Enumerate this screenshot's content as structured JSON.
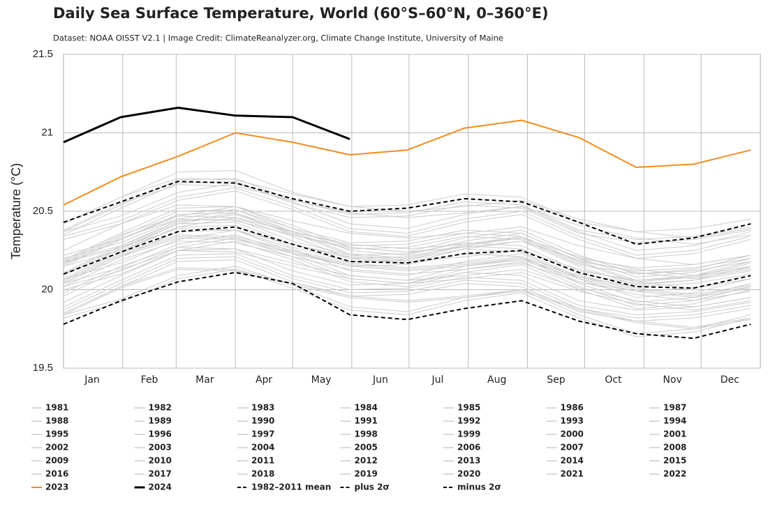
{
  "chart_data": {
    "type": "line",
    "title": "Daily Sea Surface Temperature, World (60°S–60°N, 0–360°E)",
    "subtitle": "Dataset: NOAA OISST V2.1 | Image Credit: ClimateReanalyzer.org, Climate Change Institute, University of Maine",
    "y_label": "Temperature (°C)",
    "x": [
      1,
      31,
      61,
      91,
      121,
      151,
      181,
      211,
      241,
      271,
      301,
      331,
      361
    ],
    "xlim": [
      1,
      366
    ],
    "xticks": [
      {
        "value": 16,
        "label": "Jan"
      },
      {
        "value": 46,
        "label": "Feb"
      },
      {
        "value": 75,
        "label": "Mar"
      },
      {
        "value": 106,
        "label": "Apr"
      },
      {
        "value": 136,
        "label": "May"
      },
      {
        "value": 167,
        "label": "Jun"
      },
      {
        "value": 197,
        "label": "Jul"
      },
      {
        "value": 228,
        "label": "Aug"
      },
      {
        "value": 259,
        "label": "Sep"
      },
      {
        "value": 289,
        "label": "Oct"
      },
      {
        "value": 320,
        "label": "Nov"
      },
      {
        "value": 350,
        "label": "Dec"
      }
    ],
    "xgrid": [
      32,
      60,
      91,
      121,
      152,
      182,
      213,
      244,
      274,
      305,
      335
    ],
    "ylim": [
      19.5,
      21.5
    ],
    "yticks": [
      19.5,
      20,
      20.5,
      21,
      21.5
    ],
    "grid": true,
    "series": [
      {
        "name": "1981",
        "color": "#cccccc",
        "values": [
          19.85,
          20.02,
          20.14,
          20.13,
          20.04,
          19.96,
          19.93,
          19.96,
          20.0,
          19.88,
          19.8,
          19.76,
          19.82
        ]
      },
      {
        "name": "1982",
        "color": "#cccccc",
        "values": [
          19.84,
          19.94,
          20.09,
          20.15,
          20.03,
          19.89,
          19.86,
          19.95,
          20.0,
          19.84,
          19.72,
          19.75,
          19.84
        ]
      },
      {
        "name": "1983",
        "color": "#cccccc",
        "values": [
          19.92,
          20.09,
          20.25,
          20.26,
          20.12,
          20.03,
          20.04,
          20.11,
          20.09,
          19.93,
          19.87,
          19.89,
          19.95
        ]
      },
      {
        "name": "1984",
        "color": "#cccccc",
        "values": [
          19.84,
          20.01,
          20.13,
          20.12,
          20.03,
          19.95,
          19.92,
          19.95,
          19.99,
          19.87,
          19.79,
          19.75,
          19.81
        ]
      },
      {
        "name": "1985",
        "color": "#cccccc",
        "values": [
          19.82,
          19.92,
          20.07,
          20.13,
          20.01,
          19.87,
          19.84,
          19.93,
          19.98,
          19.82,
          19.7,
          19.73,
          19.82
        ]
      },
      {
        "name": "1986",
        "color": "#cccccc",
        "values": [
          19.85,
          20.02,
          20.18,
          20.19,
          20.05,
          19.96,
          19.97,
          20.04,
          20.02,
          19.86,
          19.8,
          19.82,
          19.88
        ]
      },
      {
        "name": "1987",
        "color": "#cccccc",
        "values": [
          20.02,
          20.19,
          20.31,
          20.3,
          20.21,
          20.13,
          20.1,
          20.13,
          20.17,
          20.05,
          19.97,
          19.93,
          19.99
        ]
      },
      {
        "name": "1988",
        "color": "#cccccc",
        "values": [
          20.0,
          20.1,
          20.25,
          20.31,
          20.19,
          20.05,
          20.02,
          20.11,
          20.16,
          20.0,
          19.88,
          19.91,
          20.0
        ]
      },
      {
        "name": "1989",
        "color": "#cccccc",
        "values": [
          19.89,
          20.06,
          20.22,
          20.23,
          20.09,
          20.0,
          20.01,
          20.08,
          20.06,
          19.9,
          19.84,
          19.86,
          19.92
        ]
      },
      {
        "name": "1990",
        "color": "#cccccc",
        "values": [
          20.05,
          20.22,
          20.34,
          20.33,
          20.24,
          20.16,
          20.13,
          20.16,
          20.2,
          20.08,
          20.0,
          19.96,
          20.02
        ]
      },
      {
        "name": "1991",
        "color": "#cccccc",
        "values": [
          20.04,
          20.14,
          20.29,
          20.35,
          20.23,
          20.09,
          20.06,
          20.15,
          20.2,
          20.04,
          19.92,
          19.95,
          20.04
        ]
      },
      {
        "name": "1992",
        "color": "#cccccc",
        "values": [
          19.87,
          20.04,
          20.2,
          20.21,
          20.07,
          19.98,
          19.99,
          20.06,
          20.04,
          19.88,
          19.82,
          19.84,
          19.9
        ]
      },
      {
        "name": "1993",
        "color": "#cccccc",
        "values": [
          19.98,
          20.15,
          20.27,
          20.26,
          20.17,
          20.09,
          20.06,
          20.09,
          20.13,
          20.01,
          19.93,
          19.89,
          19.95
        ]
      },
      {
        "name": "1994",
        "color": "#cccccc",
        "values": [
          20.02,
          20.12,
          20.27,
          20.33,
          20.21,
          20.07,
          20.04,
          20.13,
          20.18,
          20.02,
          19.9,
          19.93,
          20.02
        ]
      },
      {
        "name": "1995",
        "color": "#cccccc",
        "values": [
          20.04,
          20.21,
          20.37,
          20.38,
          20.24,
          20.15,
          20.16,
          20.23,
          20.21,
          20.05,
          19.99,
          20.01,
          20.07
        ]
      },
      {
        "name": "1996",
        "color": "#cccccc",
        "values": [
          19.96,
          20.13,
          20.25,
          20.24,
          20.15,
          20.07,
          20.04,
          20.07,
          20.11,
          19.99,
          19.91,
          19.87,
          19.93
        ]
      },
      {
        "name": "1997",
        "color": "#cccccc",
        "values": [
          20.17,
          20.27,
          20.42,
          20.48,
          20.36,
          20.22,
          20.19,
          20.28,
          20.33,
          20.17,
          20.05,
          20.08,
          20.17
        ]
      },
      {
        "name": "1998",
        "color": "#cccccc",
        "values": [
          20.15,
          20.32,
          20.48,
          20.49,
          20.35,
          20.26,
          20.27,
          20.34,
          20.32,
          20.16,
          20.1,
          20.12,
          20.18
        ]
      },
      {
        "name": "1999",
        "color": "#cccccc",
        "values": [
          20.04,
          20.21,
          20.33,
          20.32,
          20.23,
          20.15,
          20.12,
          20.15,
          20.19,
          20.07,
          19.99,
          19.95,
          20.01
        ]
      },
      {
        "name": "2000",
        "color": "#cccccc",
        "values": [
          20.07,
          20.17,
          20.32,
          20.38,
          20.26,
          20.12,
          20.09,
          20.18,
          20.23,
          20.07,
          19.95,
          19.98,
          20.07
        ]
      },
      {
        "name": "2001",
        "color": "#cccccc",
        "values": [
          20.09,
          20.26,
          20.42,
          20.43,
          20.29,
          20.2,
          20.21,
          20.28,
          20.26,
          20.1,
          20.04,
          20.06,
          20.12
        ]
      },
      {
        "name": "2002",
        "color": "#cccccc",
        "values": [
          20.16,
          20.33,
          20.45,
          20.44,
          20.35,
          20.27,
          20.24,
          20.27,
          20.31,
          20.19,
          20.11,
          20.07,
          20.13
        ]
      },
      {
        "name": "2003",
        "color": "#cccccc",
        "values": [
          20.2,
          20.3,
          20.45,
          20.51,
          20.39,
          20.25,
          20.22,
          20.31,
          20.36,
          20.2,
          20.08,
          20.11,
          20.2
        ]
      },
      {
        "name": "2004",
        "color": "#cccccc",
        "values": [
          20.11,
          20.28,
          20.44,
          20.45,
          20.31,
          20.22,
          20.23,
          20.3,
          20.28,
          20.12,
          20.06,
          20.08,
          20.14
        ]
      },
      {
        "name": "2005",
        "color": "#cccccc",
        "values": [
          20.18,
          20.35,
          20.47,
          20.46,
          20.37,
          20.29,
          20.26,
          20.29,
          20.33,
          20.21,
          20.13,
          20.09,
          20.15
        ]
      },
      {
        "name": "2006",
        "color": "#cccccc",
        "values": [
          20.15,
          20.25,
          20.4,
          20.46,
          20.34,
          20.2,
          20.17,
          20.26,
          20.31,
          20.15,
          20.03,
          20.06,
          20.15
        ]
      },
      {
        "name": "2007",
        "color": "#cccccc",
        "values": [
          20.07,
          20.24,
          20.4,
          20.41,
          20.27,
          20.18,
          20.19,
          20.26,
          20.24,
          20.08,
          20.02,
          20.04,
          20.1
        ]
      },
      {
        "name": "2008",
        "color": "#cccccc",
        "values": [
          20.06,
          20.23,
          20.35,
          20.34,
          20.25,
          20.17,
          20.14,
          20.17,
          20.21,
          20.09,
          20.01,
          19.97,
          20.03
        ]
      },
      {
        "name": "2009",
        "color": "#cccccc",
        "values": [
          20.22,
          20.32,
          20.47,
          20.53,
          20.41,
          20.27,
          20.24,
          20.33,
          20.38,
          20.22,
          20.1,
          20.13,
          20.22
        ]
      },
      {
        "name": "2010",
        "color": "#cccccc",
        "values": [
          20.19,
          20.36,
          20.52,
          20.53,
          20.39,
          20.3,
          20.31,
          20.38,
          20.36,
          20.2,
          20.14,
          20.16,
          20.22
        ]
      },
      {
        "name": "2011",
        "color": "#cccccc",
        "values": [
          20.1,
          20.27,
          20.39,
          20.38,
          20.29,
          20.21,
          20.18,
          20.21,
          20.25,
          20.13,
          20.05,
          20.01,
          20.07
        ]
      },
      {
        "name": "2012",
        "color": "#cccccc",
        "values": [
          20.18,
          20.28,
          20.43,
          20.49,
          20.37,
          20.23,
          20.2,
          20.29,
          20.34,
          20.18,
          20.06,
          20.09,
          20.18
        ]
      },
      {
        "name": "2013",
        "color": "#cccccc",
        "values": [
          20.17,
          20.34,
          20.5,
          20.51,
          20.37,
          20.28,
          20.29,
          20.36,
          20.34,
          20.18,
          20.12,
          20.14,
          20.2
        ]
      },
      {
        "name": "2014",
        "color": "#cccccc",
        "values": [
          20.25,
          20.42,
          20.54,
          20.53,
          20.44,
          20.36,
          20.33,
          20.36,
          20.4,
          20.28,
          20.2,
          20.16,
          20.22
        ]
      },
      {
        "name": "2015",
        "color": "#cccccc",
        "values": [
          20.34,
          20.44,
          20.59,
          20.65,
          20.53,
          20.39,
          20.36,
          20.45,
          20.5,
          20.34,
          20.22,
          20.25,
          20.34
        ]
      },
      {
        "name": "2016",
        "color": "#cccccc",
        "values": [
          20.42,
          20.59,
          20.75,
          20.76,
          20.62,
          20.53,
          20.54,
          20.61,
          20.59,
          20.43,
          20.37,
          20.39,
          20.45
        ]
      },
      {
        "name": "2017",
        "color": "#cccccc",
        "values": [
          20.38,
          20.55,
          20.67,
          20.66,
          20.57,
          20.49,
          20.46,
          20.49,
          20.53,
          20.41,
          20.33,
          20.29,
          20.35
        ]
      },
      {
        "name": "2018",
        "color": "#cccccc",
        "values": [
          20.32,
          20.42,
          20.57,
          20.63,
          20.51,
          20.37,
          20.34,
          20.43,
          20.48,
          20.32,
          20.2,
          20.23,
          20.32
        ]
      },
      {
        "name": "2019",
        "color": "#cccccc",
        "values": [
          20.37,
          20.54,
          20.7,
          20.71,
          20.57,
          20.48,
          20.49,
          20.56,
          20.54,
          20.38,
          20.32,
          20.34,
          20.4
        ]
      },
      {
        "name": "2020",
        "color": "#cccccc",
        "values": [
          20.42,
          20.59,
          20.71,
          20.7,
          20.61,
          20.53,
          20.5,
          20.53,
          20.57,
          20.45,
          20.37,
          20.33,
          20.39
        ]
      },
      {
        "name": "2021",
        "color": "#cccccc",
        "values": [
          20.37,
          20.47,
          20.62,
          20.68,
          20.56,
          20.42,
          20.39,
          20.48,
          20.53,
          20.37,
          20.25,
          20.28,
          20.37
        ]
      },
      {
        "name": "2022",
        "color": "#cccccc",
        "values": [
          20.35,
          20.52,
          20.68,
          20.69,
          20.55,
          20.46,
          20.47,
          20.54,
          20.52,
          20.36,
          20.3,
          20.32,
          20.38
        ]
      },
      {
        "name": "2023",
        "color": "#f28c1c",
        "width": 2,
        "values": [
          20.54,
          20.72,
          20.85,
          21.0,
          20.94,
          20.86,
          20.89,
          21.03,
          21.08,
          20.97,
          20.78,
          20.8,
          20.89
        ]
      },
      {
        "name": "2024",
        "color": "#000000",
        "width": 3,
        "values": [
          20.94,
          21.1,
          21.16,
          21.11,
          21.1,
          20.96,
          null,
          null,
          null,
          null,
          null,
          null,
          null
        ]
      },
      {
        "name": "1982–2011 mean",
        "color": "#000000",
        "width": 2,
        "dash": true,
        "values": [
          20.1,
          20.24,
          20.37,
          20.4,
          20.29,
          20.18,
          20.17,
          20.23,
          20.25,
          20.11,
          20.02,
          20.01,
          20.09
        ]
      },
      {
        "name": "plus 2σ",
        "color": "#000000",
        "width": 2,
        "dash": true,
        "values": [
          20.43,
          20.56,
          20.69,
          20.68,
          20.58,
          20.5,
          20.52,
          20.58,
          20.56,
          20.43,
          20.29,
          20.33,
          20.42
        ]
      },
      {
        "name": "minus 2σ",
        "color": "#000000",
        "width": 2,
        "dash": true,
        "values": [
          19.78,
          19.93,
          20.05,
          20.11,
          20.04,
          19.84,
          19.81,
          19.88,
          19.93,
          19.8,
          19.72,
          19.69,
          19.78
        ]
      }
    ]
  }
}
